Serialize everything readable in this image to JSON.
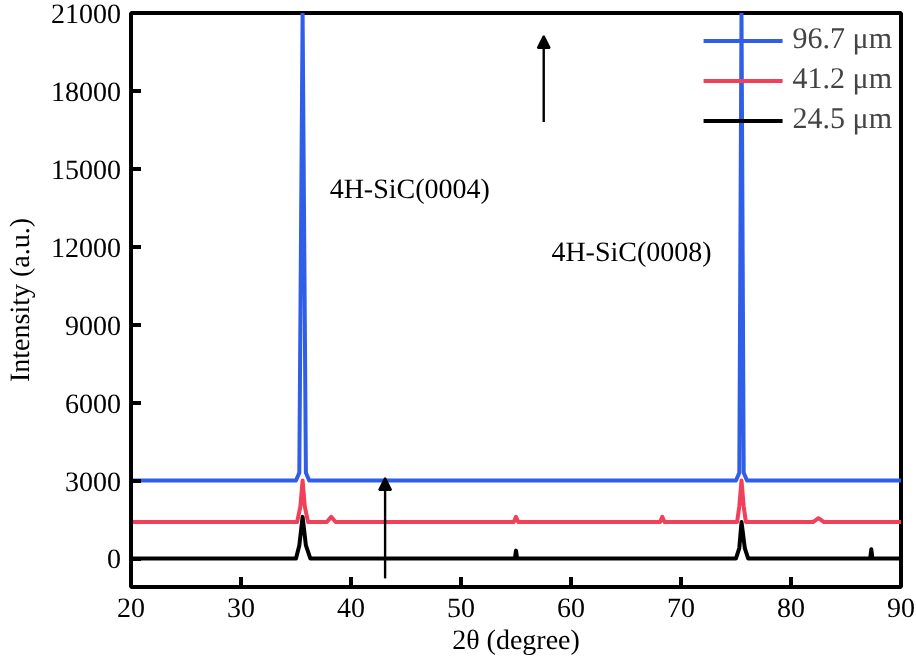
{
  "chart_data": {
    "type": "line",
    "xlabel": "2θ (degree)",
    "ylabel": "Intensity (a.u.)",
    "xlim": [
      20,
      90
    ],
    "ylim": [
      -1100,
      21000
    ],
    "xticks": [
      20,
      30,
      40,
      50,
      60,
      70,
      80,
      90
    ],
    "yticks": [
      0,
      3000,
      6000,
      9000,
      12000,
      15000,
      18000,
      21000
    ],
    "grid": false,
    "legend": "top right",
    "marker": "none",
    "line_style": "solid",
    "series": [
      {
        "name": "96.7 μm",
        "color": "#2f5fe8",
        "x": [
          20,
          35.0,
          35.3,
          35.6,
          35.9,
          36.2,
          75.0,
          75.3,
          75.5,
          75.7,
          76.0,
          90
        ],
        "values": [
          3000,
          3000,
          3300,
          21000,
          3300,
          3000,
          3000,
          3300,
          21000,
          3300,
          3000,
          3000
        ]
      },
      {
        "name": "41.2 μm",
        "color": "#f0405a",
        "x": [
          20,
          35.1,
          35.4,
          35.6,
          35.8,
          36.1,
          37.8,
          38.2,
          38.6,
          54.8,
          55.0,
          55.2,
          68.1,
          68.3,
          68.5,
          75.1,
          75.3,
          75.5,
          75.7,
          75.9,
          82.0,
          82.5,
          83.0,
          90
        ],
        "values": [
          1400,
          1400,
          2000,
          3000,
          2000,
          1400,
          1400,
          1600,
          1400,
          1400,
          1600,
          1400,
          1400,
          1600,
          1400,
          1400,
          2000,
          3000,
          2000,
          1400,
          1400,
          1550,
          1400,
          1400
        ]
      },
      {
        "name": "24.5 μm",
        "color": "#000000",
        "x": [
          20,
          35.0,
          35.3,
          35.6,
          35.9,
          36.3,
          54.9,
          55.0,
          55.1,
          75.0,
          75.3,
          75.5,
          75.8,
          76.1,
          87.2,
          87.3,
          87.4,
          90
        ],
        "values": [
          0,
          0,
          500,
          1600,
          500,
          0,
          0,
          300,
          0,
          0,
          400,
          1400,
          400,
          0,
          0,
          350,
          0,
          0
        ]
      }
    ],
    "annotations": [
      "4H-SiC(0004)",
      "4H-SiC(0008)"
    ]
  }
}
